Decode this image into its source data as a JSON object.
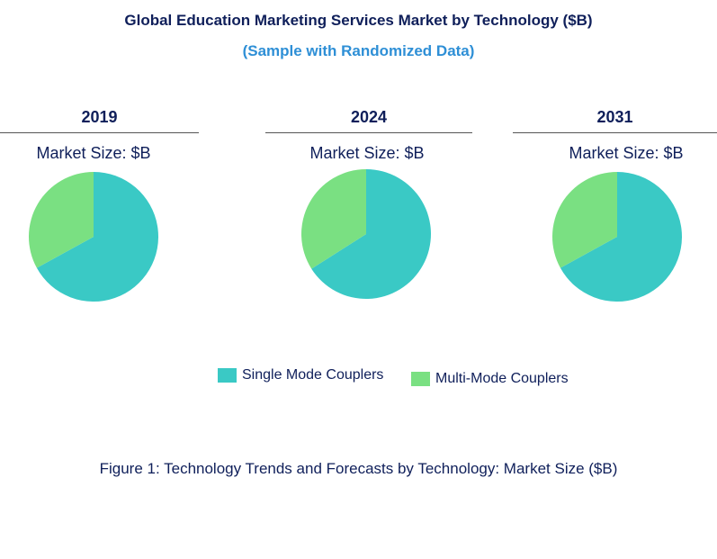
{
  "chart_data": {
    "type": "pie",
    "title": "Global Education Marketing Services Market by Technology ($B)",
    "subtitle": "(Sample with Randomized Data)",
    "caption": "Figure 1: Technology Trends and Forecasts by Technology: Market Size ($B)",
    "legend_placement": "bottom",
    "series_names": [
      "Single Mode  Couplers",
      "Multi-Mode  Couplers"
    ],
    "colors": [
      "#3ac9c5",
      "#7ae082"
    ],
    "panels": [
      {
        "year": "2019",
        "label": "Market Size: $B",
        "values": [
          67,
          33
        ]
      },
      {
        "year": "2024",
        "label": "Market Size: $B",
        "values": [
          66,
          34
        ]
      },
      {
        "year": "2031",
        "label": "Market Size: $B",
        "values": [
          67,
          33
        ]
      }
    ]
  }
}
